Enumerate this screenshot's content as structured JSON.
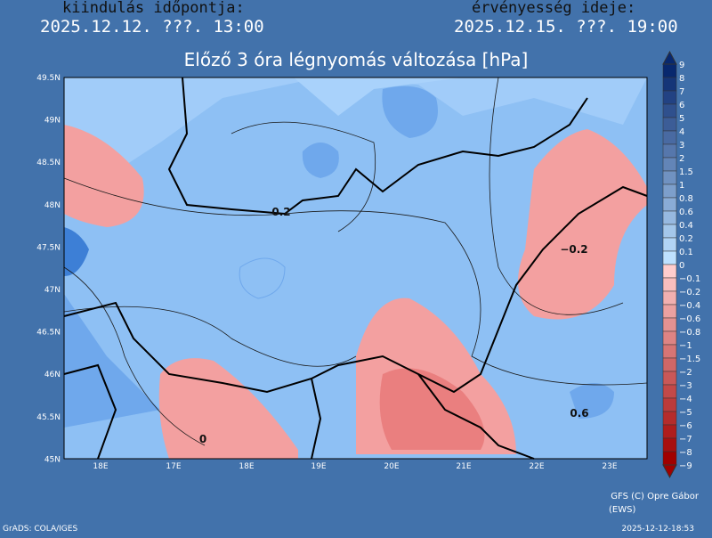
{
  "header": {
    "issue_label": "kiindulás időpontja:",
    "issue_time": "2025.12.12. ???. 13:00",
    "valid_label": "érvényesség ideje:",
    "valid_time": "2025.12.15. ???. 19:00"
  },
  "title": "Előző 3 óra légnyomás változása [hPa]",
  "lat_labels": [
    "49.5N",
    "49N",
    "48.5N",
    "48N",
    "47.5N",
    "47N",
    "46.5N",
    "46N",
    "45.5N",
    "45N"
  ],
  "lon_labels": [
    "18E",
    "17E",
    "18E",
    "19E",
    "20E",
    "21E",
    "22E",
    "23E"
  ],
  "colorbar_labels": [
    "9",
    "8",
    "7",
    "6",
    "5",
    "4",
    "3",
    "2",
    "1.5",
    "1",
    "0.8",
    "0.6",
    "0.4",
    "0.2",
    "0.1",
    "0",
    "−0.1",
    "−0.2",
    "−0.4",
    "−0.6",
    "−0.8",
    "−1",
    "−1.5",
    "−2",
    "−3",
    "−4",
    "−5",
    "−6",
    "−7",
    "−8",
    "−9"
  ],
  "contour_labels": [
    "0.2",
    "−0.2",
    "0.6",
    "0"
  ],
  "footer": {
    "credit": "GFS (C) Opre Gábor",
    "credit_sub": "(EWS)",
    "software": "GrADS: COLA/IGES",
    "generated": "2025-12-12-18:53"
  }
}
